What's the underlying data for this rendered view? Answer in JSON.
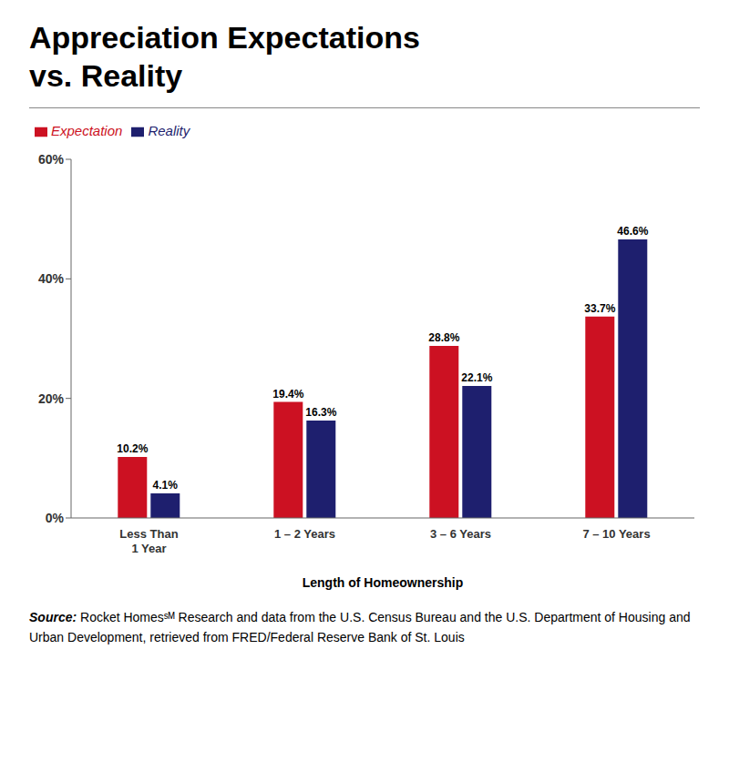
{
  "chart_data": {
    "type": "bar",
    "title": "Appreciation Expectations\nvs. Reality",
    "x_label": "Length of Homeownership",
    "categories": [
      "Less Than\n1 Year",
      "1 – 2 Years",
      "3 – 6 Years",
      "7 – 10 Years"
    ],
    "series": [
      {
        "name": "Expectation",
        "color": "#CC1122",
        "values": [
          10.2,
          19.4,
          28.8,
          33.7
        ],
        "value_labels": [
          "10.2%",
          "19.4%",
          "28.8%",
          "33.7%"
        ]
      },
      {
        "name": "Reality",
        "color": "#1E1F6E",
        "values": [
          4.1,
          16.3,
          22.1,
          46.6
        ],
        "value_labels": [
          "4.1%",
          "16.3%",
          "22.1%",
          "46.6%"
        ]
      }
    ],
    "ylim": [
      0,
      60
    ],
    "yticks": [
      {
        "value": 0,
        "label": "0%"
      },
      {
        "value": 20,
        "label": "20%"
      },
      {
        "value": 40,
        "label": "40%"
      },
      {
        "value": 60,
        "label": "60%"
      }
    ],
    "grid": false,
    "legend": "top",
    "data_labels": true,
    "annotations": [
      "Source: Rocket Homesˢᴹ Research and data from the U.S. Census Bureau and the U.S. Department of Housing and Urban Development, retrieved from FRED/Federal Reserve Bank of St. Louis"
    ]
  }
}
